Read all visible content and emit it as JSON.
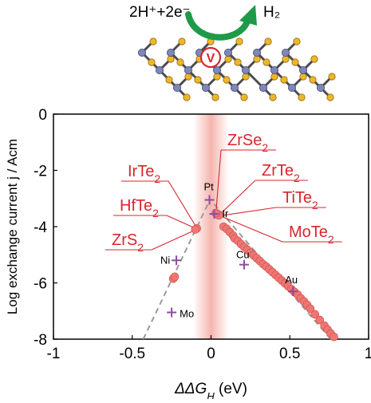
{
  "schematic": {
    "reaction_left": "2H⁺+2e⁻",
    "reaction_right": "H₂",
    "vacancy_label": "V",
    "colors": {
      "arrow": "#1f9a48",
      "metal_atom": "#7f87b8",
      "chalcogen_atom": "#f0b62a",
      "bond": "#4a4a4a",
      "vacancy": "#d7262e"
    }
  },
  "chart_data": {
    "type": "scatter",
    "title": "",
    "xlabel": "ΔΔG",
    "xlabel_sub": "H",
    "xlabel_unit": " (eV)",
    "ylabel": "Log exchange current j / Acm",
    "xlim": [
      -1,
      1
    ],
    "ylim": [
      -8,
      0
    ],
    "xticks": [
      -1,
      -0.5,
      0,
      0.5,
      1
    ],
    "xtick_labels": [
      "-1",
      "-0.5",
      "0",
      "0.5",
      "1"
    ],
    "yticks": [
      0,
      -2,
      -4,
      -6,
      -8
    ],
    "ytick_labels": [
      "0",
      "-2",
      "-4",
      "-6",
      "-8"
    ],
    "grid": false,
    "highlight_band": {
      "x_center": 0,
      "color": "#f4a8a0"
    },
    "volcano_lines": [
      {
        "name": "",
        "points": [
          [
            -0.43,
            -8
          ],
          [
            -0.02,
            -3.2
          ]
        ]
      },
      {
        "name": "",
        "points": [
          [
            0.02,
            -3.2
          ],
          [
            0.76,
            -8
          ]
        ]
      }
    ],
    "series": [
      {
        "name": "",
        "marker": "circle",
        "color": "#ef7672",
        "points": [
          [
            -0.24,
            -5.85
          ],
          [
            -0.23,
            -5.78
          ],
          [
            -0.09,
            -4.06
          ],
          [
            -0.1,
            -4.1
          ],
          [
            0.04,
            -3.55
          ],
          [
            0.05,
            -3.6
          ],
          [
            0.03,
            -3.52
          ],
          [
            0.08,
            -4.0
          ],
          [
            0.1,
            -4.08
          ],
          [
            0.12,
            -4.2
          ],
          [
            0.14,
            -4.32
          ],
          [
            0.15,
            -4.42
          ],
          [
            0.17,
            -4.5
          ],
          [
            0.19,
            -4.62
          ],
          [
            0.21,
            -4.72
          ],
          [
            0.23,
            -4.82
          ],
          [
            0.25,
            -4.93
          ],
          [
            0.27,
            -5.02
          ],
          [
            0.29,
            -5.12
          ],
          [
            0.31,
            -5.22
          ],
          [
            0.33,
            -5.33
          ],
          [
            0.35,
            -5.42
          ],
          [
            0.37,
            -5.52
          ],
          [
            0.39,
            -5.62
          ],
          [
            0.41,
            -5.72
          ],
          [
            0.43,
            -5.82
          ],
          [
            0.45,
            -5.92
          ],
          [
            0.47,
            -6.02
          ],
          [
            0.49,
            -6.12
          ],
          [
            0.51,
            -6.22
          ],
          [
            0.53,
            -6.32
          ],
          [
            0.55,
            -6.42
          ],
          [
            0.57,
            -6.55
          ],
          [
            0.59,
            -6.66
          ],
          [
            0.61,
            -6.78
          ],
          [
            0.63,
            -6.92
          ],
          [
            0.66,
            -7.12
          ],
          [
            0.69,
            -7.32
          ],
          [
            0.72,
            -7.52
          ],
          [
            0.74,
            -7.66
          ],
          [
            0.76,
            -7.8
          ],
          [
            0.78,
            -7.92
          ]
        ]
      },
      {
        "name": "",
        "marker": "plus",
        "color": "#8a4fa0",
        "points": [
          {
            "label": "Pt",
            "x": -0.01,
            "y": -3.05
          },
          {
            "label": "Ir",
            "x": 0.02,
            "y": -3.55
          },
          {
            "label": "Ni",
            "x": -0.22,
            "y": -5.2
          },
          {
            "label": "Mo",
            "x": -0.25,
            "y": -7.05
          },
          {
            "label": "Cu",
            "x": 0.21,
            "y": -5.35
          },
          {
            "label": "Au",
            "x": 0.52,
            "y": -6.3
          }
        ]
      }
    ],
    "callouts": [
      {
        "text": "ZrSe",
        "sub": "2",
        "target": [
          0.03,
          -3.6
        ]
      },
      {
        "text": "IrTe",
        "sub": "2",
        "target": [
          -0.09,
          -4.05
        ]
      },
      {
        "text": "ZrTe",
        "sub": "2",
        "target": [
          0.05,
          -3.6
        ]
      },
      {
        "text": "HfTe",
        "sub": "2",
        "target": [
          -0.09,
          -4.08
        ]
      },
      {
        "text": "TiTe",
        "sub": "2",
        "target": [
          0.05,
          -3.62
        ]
      },
      {
        "text": "ZrS",
        "sub": "2",
        "target": [
          -0.1,
          -4.12
        ]
      },
      {
        "text": "MoTe",
        "sub": "2",
        "target": [
          0.06,
          -3.62
        ]
      }
    ]
  }
}
